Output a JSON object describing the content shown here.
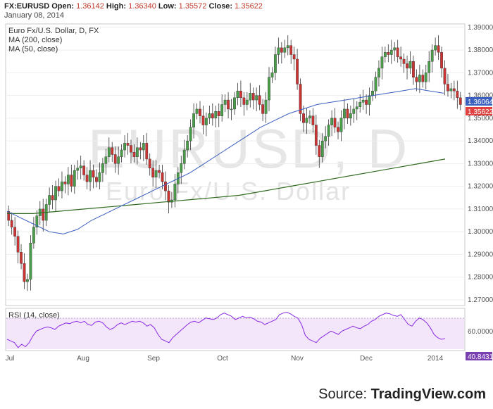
{
  "header": {
    "symbol": "FX:EURUSD",
    "open_label": "Open:",
    "open": "1.36142",
    "high_label": "High:",
    "high": "1.36340",
    "low_label": "Low:",
    "low": "1.35572",
    "close_label": "Close:",
    "close": "1.35622",
    "date": "January 08, 2014"
  },
  "legend": {
    "title": "Euro Fx/U.S. Dollar, D, FX",
    "ma200": "MA (200, close)",
    "ma50": "MA (50, close)",
    "rsi": "RSI (14, close)"
  },
  "watermark": {
    "big": "EURUSD, D",
    "small": "Euro Fx/U.S. Dollar"
  },
  "source": {
    "prefix": "Source: ",
    "brand": "TradingView.com"
  },
  "colors": {
    "up": "#4a9e4a",
    "down": "#cc3333",
    "ma200": "#2e6b1f",
    "ma50": "#3a5fbf",
    "rsi_line": "#8a2be2",
    "rsi_fill": "#f3e6fb",
    "price_tag": "#e04040",
    "ma_tag": "#3a5fbf"
  },
  "chart_data": [
    {
      "type": "candlestick",
      "x_tick_labels": [
        "Jul",
        "Aug",
        "Sep",
        "Oct",
        "Nov",
        "Dec",
        "2014"
      ],
      "y_tick_labels": [
        "1.27000",
        "1.28000",
        "1.29000",
        "1.30000",
        "1.31000",
        "1.32000",
        "1.33000",
        "1.34000",
        "1.35000",
        "1.36000",
        "1.37000",
        "1.38000",
        "1.39000"
      ],
      "ylim": [
        1.2675,
        1.3915
      ],
      "last_price": "1.35622",
      "ma50_last": "1.36064",
      "close_series": [
        1.305,
        1.302,
        1.298,
        1.291,
        1.286,
        1.278,
        1.279,
        1.295,
        1.302,
        1.307,
        1.31,
        1.305,
        1.312,
        1.316,
        1.314,
        1.32,
        1.318,
        1.322,
        1.321,
        1.325,
        1.32,
        1.327,
        1.328,
        1.329,
        1.325,
        1.322,
        1.327,
        1.324,
        1.322,
        1.326,
        1.33,
        1.333,
        1.337,
        1.334,
        1.33,
        1.333,
        1.336,
        1.339,
        1.338,
        1.335,
        1.333,
        1.337,
        1.336,
        1.339,
        1.332,
        1.328,
        1.324,
        1.327,
        1.326,
        1.322,
        1.318,
        1.313,
        1.314,
        1.321,
        1.326,
        1.33,
        1.336,
        1.34,
        1.346,
        1.352,
        1.354,
        1.351,
        1.347,
        1.35,
        1.352,
        1.35,
        1.353,
        1.351,
        1.356,
        1.358,
        1.354,
        1.354,
        1.359,
        1.362,
        1.359,
        1.356,
        1.358,
        1.361,
        1.358,
        1.36,
        1.356,
        1.352,
        1.358,
        1.368,
        1.37,
        1.378,
        1.381,
        1.379,
        1.381,
        1.382,
        1.378,
        1.376,
        1.365,
        1.352,
        1.348,
        1.35,
        1.351,
        1.347,
        1.338,
        1.333,
        1.34,
        1.342,
        1.347,
        1.35,
        1.346,
        1.344,
        1.35,
        1.354,
        1.35,
        1.352,
        1.354,
        1.355,
        1.357,
        1.358,
        1.356,
        1.36,
        1.362,
        1.368,
        1.372,
        1.377,
        1.379,
        1.378,
        1.38,
        1.381,
        1.377,
        1.376,
        1.374,
        1.372,
        1.375,
        1.368,
        1.366,
        1.369,
        1.366,
        1.37,
        1.375,
        1.38,
        1.382,
        1.379,
        1.372,
        1.365,
        1.362,
        1.363,
        1.362,
        1.359,
        1.356
      ],
      "ma50_series": [
        1.308,
        1.306,
        1.305,
        1.304,
        1.302,
        1.3,
        1.299,
        1.3,
        1.302,
        1.304,
        1.306,
        1.307,
        1.308,
        1.31,
        1.311,
        1.312,
        1.313,
        1.315,
        1.316,
        1.317,
        1.318,
        1.319,
        1.321,
        1.322,
        1.323,
        1.324,
        1.325,
        1.326,
        1.327,
        1.329,
        1.33,
        1.331,
        1.332,
        1.333,
        1.334,
        1.335,
        1.336,
        1.337,
        1.338,
        1.339,
        1.34,
        1.341,
        1.342,
        1.343,
        1.344,
        1.345,
        1.346,
        1.347,
        1.349,
        1.35,
        1.351,
        1.352,
        1.353,
        1.354,
        1.355,
        1.356,
        1.357,
        1.358,
        1.358,
        1.359,
        1.359,
        1.36,
        1.361,
        1.361,
        1.36,
        1.359,
        1.358,
        1.358,
        1.359,
        1.36,
        1.361,
        1.362,
        1.362,
        1.363,
        1.362,
        1.361,
        1.36,
        1.361,
        1.361,
        1.362,
        1.362,
        1.361,
        1.36,
        1.36,
        1.36,
        1.361,
        1.362,
        1.361,
        1.36,
        1.361,
        1.362,
        1.362,
        1.363,
        1.363,
        1.362,
        1.362,
        1.361,
        1.361,
        1.361,
        1.36,
        1.36,
        1.36,
        1.36,
        1.36,
        1.361,
        1.361,
        1.361,
        1.362,
        1.362,
        1.362,
        1.362,
        1.363,
        1.363,
        1.363,
        1.363,
        1.363,
        1.363,
        1.363,
        1.364,
        1.364,
        1.364,
        1.364,
        1.364,
        1.364,
        1.363,
        1.363,
        1.363,
        1.362,
        1.362,
        1.362,
        1.361,
        1.361,
        1.361,
        1.361,
        1.361,
        1.361,
        1.361,
        1.361,
        1.361,
        1.361,
        1.361,
        1.361,
        1.361
      ],
      "ma200_series": [
        1.308,
        1.308,
        1.309,
        1.309,
        1.309,
        1.31,
        1.31,
        1.31,
        1.311,
        1.311,
        1.312,
        1.312,
        1.313,
        1.313,
        1.314,
        1.314,
        1.315,
        1.315,
        1.316,
        1.316,
        1.317,
        1.317,
        1.318,
        1.318,
        1.319,
        1.319,
        1.32,
        1.32,
        1.321,
        1.321,
        1.322,
        1.322,
        1.323,
        1.323,
        1.324,
        1.324,
        1.325,
        1.325,
        1.326,
        1.326,
        1.327,
        1.327,
        1.328,
        1.328,
        1.329,
        1.329,
        1.33,
        1.33,
        1.331,
        1.331,
        1.332,
        1.332
      ],
      "ma50_full": [
        1.309,
        1.306,
        1.303,
        1.3,
        1.299,
        1.301,
        1.305,
        1.308,
        1.311,
        1.314,
        1.317,
        1.32,
        1.323,
        1.326,
        1.33,
        1.334,
        1.338,
        1.342,
        1.346,
        1.349,
        1.352,
        1.354,
        1.356,
        1.357,
        1.358,
        1.359,
        1.36,
        1.361,
        1.362,
        1.363,
        1.362,
        1.361
      ],
      "ma200_full": [
        1.308,
        1.308,
        1.309,
        1.31,
        1.311,
        1.312,
        1.313,
        1.314,
        1.315,
        1.316,
        1.318,
        1.32,
        1.322,
        1.324,
        1.326,
        1.328,
        1.33,
        1.332
      ]
    },
    {
      "type": "line",
      "name": "RSI (14, close)",
      "y_tick_labels": [
        "60.0000"
      ],
      "last_value": "40.8431",
      "ylim": [
        28,
        76
      ],
      "values": [
        40,
        38,
        36,
        30,
        34,
        31,
        36,
        44,
        50,
        52,
        54,
        55,
        54,
        52,
        56,
        58,
        60,
        59,
        61,
        62,
        60,
        62,
        58,
        57,
        61,
        62,
        60,
        55,
        52,
        54,
        58,
        60,
        58,
        60,
        62,
        61,
        62,
        60,
        56,
        58,
        54,
        46,
        40,
        38,
        36,
        42,
        46,
        50,
        54,
        58,
        61,
        62,
        60,
        63,
        66,
        65,
        64,
        66,
        70,
        72,
        70,
        68,
        64,
        66,
        68,
        66,
        67,
        65,
        62,
        61,
        58,
        60,
        62,
        64,
        70,
        72,
        73,
        71,
        68,
        66,
        58,
        45,
        40,
        38,
        36,
        41,
        44,
        47,
        50,
        48,
        46,
        50,
        52,
        54,
        56,
        54,
        53,
        56,
        58,
        62,
        64,
        68,
        70,
        72,
        71,
        69,
        68,
        70,
        64,
        58,
        56,
        62,
        66,
        64,
        60,
        54,
        46,
        42,
        40,
        41
      ]
    }
  ]
}
